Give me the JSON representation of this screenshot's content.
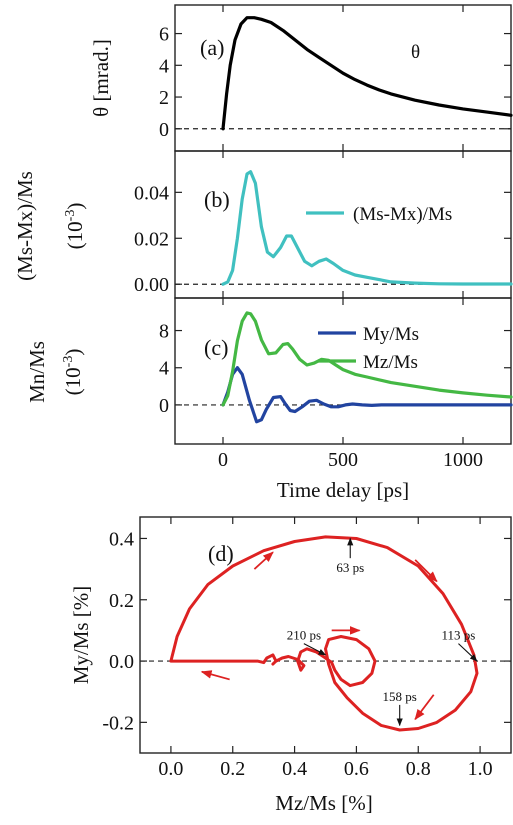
{
  "colors": {
    "theta": "#000000",
    "msmx": "#40c0c0",
    "my": "#2244a0",
    "mz": "#44b844",
    "spiral": "#dd2222",
    "axis": "#222222"
  },
  "chart_data": [
    {
      "panel": "(a)",
      "type": "line",
      "xlim": [
        -200,
        1200
      ],
      "ylim": [
        -1.4,
        7.8
      ],
      "yticks": [
        "0",
        "2",
        "4",
        "6"
      ],
      "ylabel": "θ [mrad.]",
      "series": [
        {
          "name": "θ",
          "color": "theta",
          "x": [
            0,
            15,
            30,
            50,
            75,
            100,
            130,
            160,
            200,
            250,
            300,
            350,
            400,
            450,
            500,
            550,
            600,
            650,
            700,
            800,
            900,
            1000,
            1100,
            1200
          ],
          "y": [
            0.0,
            2.2,
            4.0,
            5.6,
            6.6,
            7.0,
            7.0,
            6.9,
            6.7,
            6.2,
            5.6,
            5.0,
            4.5,
            4.0,
            3.5,
            3.1,
            2.75,
            2.45,
            2.2,
            1.8,
            1.5,
            1.25,
            1.05,
            0.85
          ]
        }
      ]
    },
    {
      "panel": "(b)",
      "type": "line",
      "xlim": [
        -200,
        1200
      ],
      "ylim": [
        -0.006,
        0.058
      ],
      "yticks": [
        "0.00",
        "0.02",
        "0.04"
      ],
      "ylabel_line1": "(Ms-Mx)/Ms",
      "ylabel_line2": "(10",
      "ylabel_exp": "-3",
      "ylabel_close": ")",
      "series": [
        {
          "name": "(Ms-Mx)/Ms",
          "color": "msmx",
          "x": [
            0,
            20,
            40,
            60,
            80,
            100,
            115,
            135,
            160,
            185,
            210,
            240,
            265,
            285,
            310,
            340,
            370,
            400,
            430,
            460,
            500,
            550,
            600,
            650,
            700,
            800,
            900,
            1000,
            1100,
            1200
          ],
          "y": [
            0.0,
            0.001,
            0.006,
            0.02,
            0.037,
            0.048,
            0.049,
            0.044,
            0.025,
            0.014,
            0.012,
            0.016,
            0.021,
            0.021,
            0.016,
            0.01,
            0.008,
            0.01,
            0.011,
            0.009,
            0.006,
            0.004,
            0.003,
            0.002,
            0.001,
            0.0005,
            0.0002,
            0.0001,
            0.0001,
            0.0001
          ]
        }
      ]
    },
    {
      "panel": "(c)",
      "type": "line",
      "xlim": [
        -200,
        1200
      ],
      "ylim": [
        -4.2,
        11.5
      ],
      "yticks": [
        "0",
        "4",
        "8"
      ],
      "xticks": [
        "0",
        "500",
        "1000"
      ],
      "xlabel": "Time delay [ps]",
      "ylabel_line1": "Mn/Ms",
      "ylabel_line2": "(10",
      "ylabel_exp": "-3",
      "ylabel_close": ")",
      "series": [
        {
          "name": "My/Ms",
          "color": "my",
          "x": [
            0,
            20,
            40,
            60,
            80,
            110,
            140,
            160,
            180,
            210,
            240,
            260,
            280,
            300,
            330,
            360,
            390,
            420,
            450,
            480,
            510,
            540,
            580,
            620,
            660,
            700,
            800,
            900,
            1000,
            1100,
            1200
          ],
          "y": [
            0.0,
            1.4,
            3.3,
            4.0,
            3.3,
            0.5,
            -1.8,
            -1.6,
            -0.5,
            0.8,
            0.9,
            0.1,
            -0.6,
            -0.7,
            -0.2,
            0.4,
            0.5,
            0.1,
            -0.2,
            -0.2,
            0.0,
            0.1,
            0.0,
            -0.05,
            0.0,
            0.0,
            0.0,
            0.0,
            0.0,
            0.0,
            0.0
          ]
        },
        {
          "name": "Mz/Ms",
          "color": "mz",
          "x": [
            0,
            20,
            40,
            60,
            80,
            100,
            115,
            135,
            160,
            190,
            220,
            250,
            270,
            290,
            320,
            350,
            380,
            410,
            440,
            470,
            500,
            550,
            600,
            700,
            800,
            900,
            1000,
            1100,
            1200
          ],
          "y": [
            0.0,
            1.0,
            3.6,
            6.9,
            9.0,
            9.9,
            9.8,
            9.0,
            7.0,
            5.5,
            5.6,
            6.5,
            6.6,
            6.0,
            4.9,
            4.3,
            4.5,
            4.9,
            4.8,
            4.3,
            3.8,
            3.3,
            3.0,
            2.4,
            2.0,
            1.6,
            1.3,
            1.05,
            0.85
          ]
        }
      ]
    },
    {
      "panel": "(d)",
      "type": "line",
      "xlim": [
        -0.1,
        1.1
      ],
      "ylim": [
        -0.3,
        0.47
      ],
      "xticks": [
        "0.0",
        "0.2",
        "0.4",
        "0.6",
        "0.8",
        "1.0"
      ],
      "yticks": [
        "-0.2",
        "0.0",
        "0.2",
        "0.4"
      ],
      "xlabel": "Mz/Ms [%]",
      "ylabel": "My/Ms [%]",
      "series": [
        {
          "name": "",
          "color": "spiral",
          "x": [
            0.0,
            0.02,
            0.06,
            0.12,
            0.2,
            0.3,
            0.4,
            0.5,
            0.6,
            0.7,
            0.8,
            0.88,
            0.94,
            0.98,
            0.99,
            0.97,
            0.92,
            0.86,
            0.8,
            0.74,
            0.68,
            0.62,
            0.57,
            0.53,
            0.51,
            0.5,
            0.51,
            0.55,
            0.6,
            0.64,
            0.66,
            0.65,
            0.62,
            0.58,
            0.55,
            0.53,
            0.52,
            0.5,
            0.47,
            0.44,
            0.42,
            0.41,
            0.42,
            0.43,
            0.41,
            0.38,
            0.36,
            0.34,
            0.33,
            0.34,
            0.33,
            0.31,
            0.3,
            0.28,
            0.25,
            0.22,
            0.18,
            0.12,
            0.06,
            0.0
          ],
          "y": [
            0.0,
            0.08,
            0.17,
            0.25,
            0.31,
            0.36,
            0.39,
            0.405,
            0.4,
            0.37,
            0.31,
            0.22,
            0.12,
            0.02,
            -0.04,
            -0.1,
            -0.16,
            -0.2,
            -0.22,
            -0.225,
            -0.21,
            -0.17,
            -0.12,
            -0.07,
            -0.01,
            0.04,
            0.07,
            0.08,
            0.07,
            0.04,
            0.0,
            -0.04,
            -0.07,
            -0.08,
            -0.06,
            -0.03,
            -0.005,
            0.01,
            0.03,
            0.04,
            0.03,
            0.0,
            -0.03,
            -0.015,
            0.005,
            0.015,
            0.01,
            0.0,
            -0.01,
            0.0,
            0.02,
            0.01,
            -0.005,
            0.0,
            0.0,
            0.0,
            0.0,
            0.0,
            0.0,
            0.0
          ]
        }
      ],
      "annotations": [
        {
          "text": "63 ps",
          "x": 0.58,
          "y": 0.29,
          "arrow_to": [
            0.58,
            0.4
          ]
        },
        {
          "text": "113 ps",
          "x": 0.93,
          "y": 0.07,
          "arrow_to": [
            0.99,
            0.0
          ]
        },
        {
          "text": "210 ps",
          "x": 0.43,
          "y": 0.07,
          "arrow_to": [
            0.5,
            0.02
          ]
        },
        {
          "text": "158 ps",
          "x": 0.74,
          "y": -0.13,
          "arrow_to": [
            0.74,
            -0.21
          ]
        }
      ],
      "direction_arrows": [
        {
          "from": [
            0.27,
            0.3
          ],
          "to": [
            0.33,
            0.355
          ]
        },
        {
          "from": [
            0.79,
            0.33
          ],
          "to": [
            0.86,
            0.26
          ]
        },
        {
          "from": [
            0.52,
            0.1
          ],
          "to": [
            0.61,
            0.1
          ]
        },
        {
          "from": [
            0.85,
            -0.11
          ],
          "to": [
            0.79,
            -0.19
          ]
        },
        {
          "from": [
            0.19,
            -0.06
          ],
          "to": [
            0.1,
            -0.035
          ]
        }
      ]
    }
  ]
}
